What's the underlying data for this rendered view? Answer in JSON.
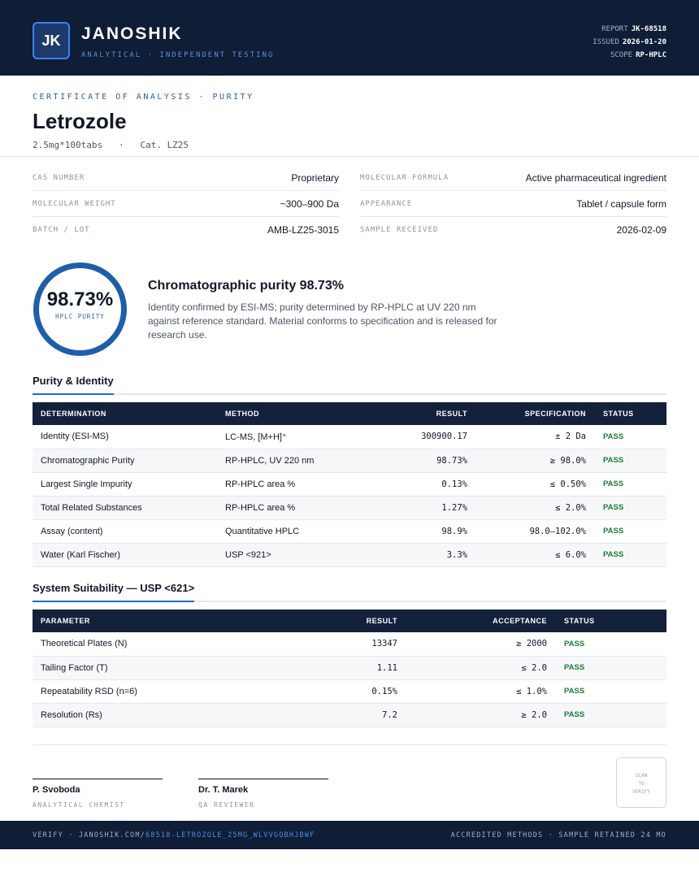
{
  "header": {
    "logo": "JK",
    "brand": "JANOSHIK",
    "tagline": "ANALYTICAL · INDEPENDENT TESTING",
    "meta": [
      {
        "label": "REPORT",
        "value": "JK-68518"
      },
      {
        "label": "ISSUED",
        "value": "2026-01-20"
      },
      {
        "label": "SCOPE",
        "value": "RP-HPLC"
      }
    ]
  },
  "doc": {
    "kicker": "CERTIFICATE OF ANALYSIS · PURITY",
    "title": "Letrozole",
    "subtitle": "2.5mg*100tabs   ·   Cat. LZ25"
  },
  "properties": [
    {
      "label": "CAS NUMBER",
      "value": "Proprietary"
    },
    {
      "label": "MOLECULAR FORMULA",
      "value": "Active pharmaceutical ingredient"
    },
    {
      "label": "MOLECULAR WEIGHT",
      "value": "~300–900 Da"
    },
    {
      "label": "APPEARANCE",
      "value": "Tablet / capsule form"
    },
    {
      "label": "BATCH / LOT",
      "value": "AMB-LZ25-3015"
    },
    {
      "label": "SAMPLE RECEIVED",
      "value": "2026-02-09"
    }
  ],
  "summary": {
    "purity": "98.73%",
    "purity_label": "HPLC PURITY",
    "heading": "Chromatographic purity 98.73%",
    "text": "Identity confirmed by ESI-MS; purity determined by RP-HPLC at UV 220 nm against reference standard. Material conforms to specification and is released for research use."
  },
  "purity_table": {
    "title": "Purity & Identity",
    "columns": [
      "DETERMINATION",
      "METHOD",
      "RESULT",
      "SPECIFICATION",
      "STATUS"
    ],
    "rows": [
      [
        "Identity (ESI-MS)",
        "LC-MS, [M+H]⁺",
        "300900.17",
        "± 2 Da",
        "PASS"
      ],
      [
        "Chromatographic Purity",
        "RP-HPLC, UV 220 nm",
        "98.73%",
        "≥ 98.0%",
        "PASS"
      ],
      [
        "Largest Single Impurity",
        "RP-HPLC area %",
        "0.13%",
        "≤ 0.50%",
        "PASS"
      ],
      [
        "Total Related Substances",
        "RP-HPLC area %",
        "1.27%",
        "≤ 2.0%",
        "PASS"
      ],
      [
        "Assay (content)",
        "Quantitative HPLC",
        "98.9%",
        "98.0–102.0%",
        "PASS"
      ],
      [
        "Water (Karl Fischer)",
        "USP <921>",
        "3.3%",
        "≤ 6.0%",
        "PASS"
      ]
    ]
  },
  "suitability_table": {
    "title": "System Suitability — USP <621>",
    "columns": [
      "PARAMETER",
      "RESULT",
      "ACCEPTANCE",
      "STATUS"
    ],
    "rows": [
      [
        "Theoretical Plates (N)",
        "13347",
        "≥ 2000",
        "PASS"
      ],
      [
        "Tailing Factor (T)",
        "1.11",
        "≤ 2.0",
        "PASS"
      ],
      [
        "Repeatability RSD (n=6)",
        "0.15%",
        "≤ 1.0%",
        "PASS"
      ],
      [
        "Resolution (Rs)",
        "7.2",
        "≥ 2.0",
        "PASS"
      ]
    ]
  },
  "signatures": [
    {
      "name": "P. Svoboda",
      "role": "ANALYTICAL CHEMIST"
    },
    {
      "name": "Dr. T. Marek",
      "role": "QA REVIEWER"
    }
  ],
  "stamp": [
    "SCAN",
    "TO",
    "VERIFY"
  ],
  "footer": {
    "verify": "VERIFY · JANOSHIK.COM/",
    "link": "68518-LETROZOLE_25MG_WLVVGQBHJBWF",
    "right": "ACCREDITED METHODS · SAMPLE RETAINED 24 MO"
  }
}
